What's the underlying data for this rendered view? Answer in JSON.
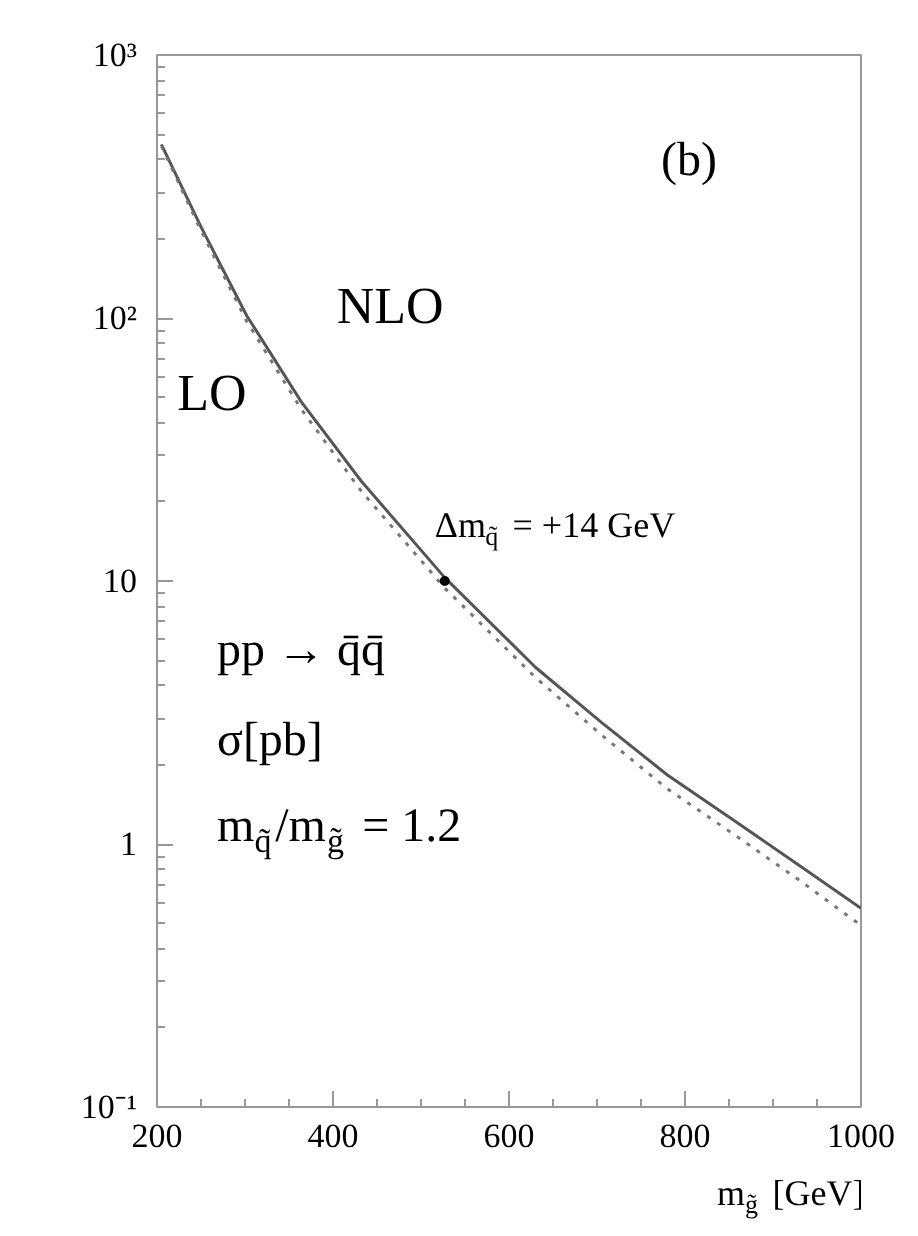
{
  "chart_data": {
    "type": "line",
    "log": "y",
    "xlabel": "m$_{g̃}$ [GeV]",
    "x": [
      205,
      250,
      302,
      364,
      432,
      527,
      630,
      705,
      780,
      857,
      932,
      1000
    ],
    "series": [
      {
        "name": "NLO",
        "color": "#555555",
        "line_style": "solid",
        "values": [
          457,
          222,
          102,
          48,
          24,
          10.3,
          4.7,
          2.9,
          1.83,
          1.22,
          0.82,
          0.57
        ]
      },
      {
        "name": "LO",
        "color": "#777777",
        "line_style": "dotted",
        "values": [
          450,
          215,
          97,
          45,
          22,
          9.4,
          4.3,
          2.6,
          1.62,
          1.08,
          0.72,
          0.49
        ]
      }
    ],
    "xlim": [
      200,
      1000
    ],
    "xticks": [
      200,
      400,
      600,
      800,
      1000
    ],
    "ylim": [
      0.1,
      1000
    ],
    "yticks": [
      {
        "value": 0.1,
        "label": "10⁻¹"
      },
      1,
      10,
      {
        "value": 100,
        "label": "10²"
      },
      {
        "value": 1000,
        "label": "10³"
      }
    ],
    "grid": false,
    "marker": "none",
    "annotations": [
      {
        "text": "Δm$_{q̃}$ = +14 GeV",
        "x": 527,
        "y": 10
      },
      "(b)",
      "pp → q̄q̄",
      "σ[pb]",
      "m$_{q̃}$/m$_{g̃}$ = 1.2"
    ]
  }
}
